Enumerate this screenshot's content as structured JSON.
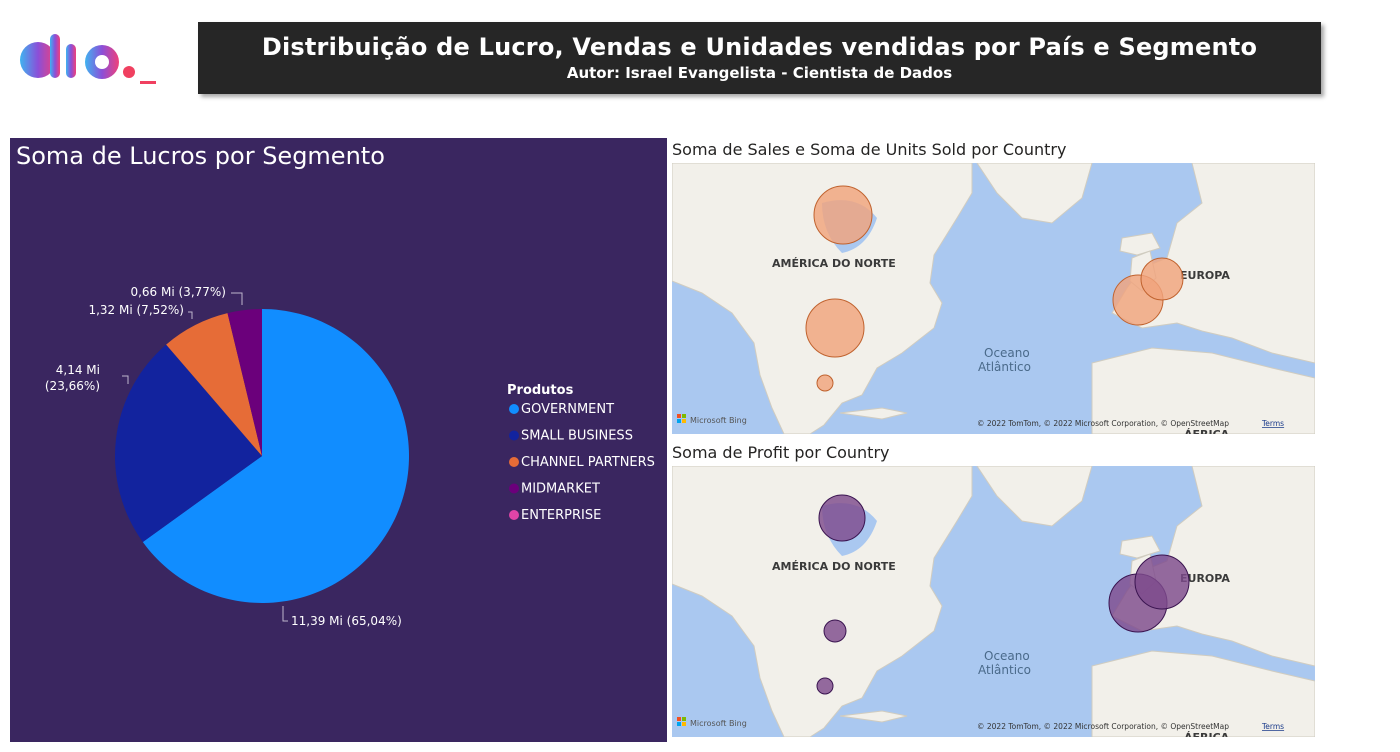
{
  "header": {
    "title": "Distribuição de Lucro, Vendas e Unidades vendidas por País e Segmento",
    "subtitle": "Autor: Israel Evangelista - Cientista de Dados"
  },
  "colors": {
    "panel_bg": "#3a2660",
    "government": "#118dff",
    "small_business": "#12239e",
    "channel_partners": "#e66c37",
    "midmarket": "#6b007b",
    "enterprise": "#e044a7",
    "sales_bubble": "#f0a47c",
    "profit_bubble": "#7e4a8c"
  },
  "chart_data": [
    {
      "type": "pie",
      "title": "Soma de Lucros por Segmento",
      "legend_title": "Produtos",
      "legend_position": "right",
      "categories": [
        "GOVERNMENT",
        "SMALL BUSINESS",
        "CHANNEL PARTNERS",
        "MIDMARKET",
        "ENTERPRISE"
      ],
      "values": [
        11.39,
        4.14,
        1.32,
        0.66,
        0
      ],
      "unit": "Mi",
      "data_labels": [
        "11,39 Mi (65,04%)",
        "4,14 Mi (23,66%)",
        "1,32 Mi (7,52%)",
        "0,66 Mi (3,77%)",
        ""
      ]
    },
    {
      "type": "scatter",
      "title": "Soma de Sales e Soma de Units Sold por Country",
      "map_labels": [
        "AMÉRICA DO NORTE",
        "EUROPA",
        "Oceano",
        "Atlântico",
        "ÁFRICA"
      ],
      "attribution": "© 2022 TomTom, © 2022 Microsoft Corporation, © OpenStreetMap",
      "terms": "Terms",
      "provider": "Microsoft Bing"
    },
    {
      "type": "scatter",
      "title": "Soma de Profit por Country",
      "map_labels": [
        "AMÉRICA DO NORTE",
        "EUROPA",
        "Oceano",
        "Atlântico",
        "ÁFRICA"
      ],
      "attribution": "© 2022 TomTom, © 2022 Microsoft Corporation, © OpenStreetMap",
      "terms": "Terms",
      "provider": "Microsoft Bing"
    }
  ]
}
